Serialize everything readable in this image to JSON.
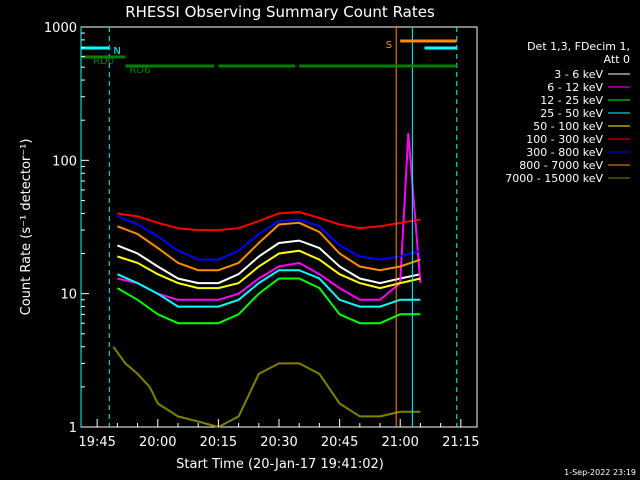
{
  "chart_data": {
    "type": "line",
    "title": "RHESSI Observing Summary Count Rates",
    "xlabel": "Start Time (20-Jan-17 19:41:02)",
    "ylabel": "Count Rate (s⁻¹ detector⁻¹)",
    "yscale": "log",
    "ylim": [
      1,
      1000
    ],
    "xlim": [
      "19:41",
      "21:19"
    ],
    "x_ticks": [
      "19:45",
      "20:00",
      "20:15",
      "20:30",
      "20:45",
      "21:00",
      "21:15"
    ],
    "y_ticks": [
      "1",
      "10",
      "100",
      "1000"
    ],
    "grid": false,
    "legend_position": "right",
    "legend_header": [
      "Det 1,3, FDecim 1,",
      "Att 0"
    ],
    "footer_date": "1-Sep-2022 23:19",
    "series": [
      {
        "name": "3 - 6 keV",
        "color": "#ffffff",
        "x": [
          "19:50",
          "19:55",
          "20:00",
          "20:05",
          "20:10",
          "20:15",
          "20:20",
          "20:25",
          "20:30",
          "20:35",
          "20:40",
          "20:45",
          "20:50",
          "20:55",
          "21:00",
          "21:05"
        ],
        "values": [
          23,
          20,
          16,
          13,
          12,
          12,
          14,
          19,
          24,
          25,
          22,
          16,
          13,
          12,
          13,
          14
        ]
      },
      {
        "name": "6 - 12 keV",
        "color": "#ff00ff",
        "x": [
          "19:50",
          "19:55",
          "20:00",
          "20:05",
          "20:10",
          "20:15",
          "20:20",
          "20:25",
          "20:30",
          "20:35",
          "20:40",
          "20:45",
          "20:50",
          "20:55",
          "21:00",
          "21:02",
          "21:05"
        ],
        "values": [
          13,
          12,
          10,
          9,
          9,
          9,
          10,
          13,
          16,
          17,
          14,
          11,
          9,
          9,
          12,
          160,
          12
        ]
      },
      {
        "name": "12 - 25 keV",
        "color": "#00ff00",
        "x": [
          "19:50",
          "19:55",
          "20:00",
          "20:05",
          "20:10",
          "20:15",
          "20:20",
          "20:25",
          "20:30",
          "20:35",
          "20:40",
          "20:45",
          "20:50",
          "20:55",
          "21:00",
          "21:05"
        ],
        "values": [
          11,
          9,
          7,
          6,
          6,
          6,
          7,
          10,
          13,
          13,
          11,
          7,
          6,
          6,
          7,
          7
        ]
      },
      {
        "name": "25 - 50 keV",
        "color": "#00ffff",
        "x": [
          "19:50",
          "19:55",
          "20:00",
          "20:05",
          "20:10",
          "20:15",
          "20:20",
          "20:25",
          "20:30",
          "20:35",
          "20:40",
          "20:45",
          "20:50",
          "20:55",
          "21:00",
          "21:05"
        ],
        "values": [
          14,
          12,
          10,
          8,
          8,
          8,
          9,
          12,
          15,
          15,
          13,
          9,
          8,
          8,
          9,
          9
        ]
      },
      {
        "name": "50 - 100 keV",
        "color": "#ffff00",
        "x": [
          "19:50",
          "19:55",
          "20:00",
          "20:05",
          "20:10",
          "20:15",
          "20:20",
          "20:25",
          "20:30",
          "20:35",
          "20:40",
          "20:45",
          "20:50",
          "20:55",
          "21:00",
          "21:05"
        ],
        "values": [
          19,
          17,
          14,
          12,
          11,
          11,
          12,
          16,
          20,
          21,
          18,
          14,
          12,
          11,
          12,
          13
        ]
      },
      {
        "name": "100 - 300 keV",
        "color": "#ff0000",
        "x": [
          "19:50",
          "19:55",
          "20:00",
          "20:05",
          "20:10",
          "20:15",
          "20:20",
          "20:25",
          "20:30",
          "20:35",
          "20:40",
          "20:45",
          "20:50",
          "20:55",
          "21:00",
          "21:05"
        ],
        "values": [
          40,
          38,
          34,
          31,
          30,
          30,
          31,
          35,
          40,
          41,
          37,
          33,
          31,
          32,
          34,
          36
        ]
      },
      {
        "name": "300 - 800 keV",
        "color": "#0000ff",
        "x": [
          "19:50",
          "19:55",
          "20:00",
          "20:05",
          "20:10",
          "20:15",
          "20:20",
          "20:25",
          "20:30",
          "20:35",
          "20:40",
          "20:45",
          "20:50",
          "20:55",
          "21:00",
          "21:05"
        ],
        "values": [
          38,
          33,
          27,
          21,
          18,
          18,
          21,
          28,
          35,
          36,
          32,
          23,
          19,
          18,
          19,
          21
        ]
      },
      {
        "name": "800 - 7000 keV",
        "color": "#ff8c00",
        "x": [
          "19:50",
          "19:55",
          "20:00",
          "20:05",
          "20:10",
          "20:15",
          "20:20",
          "20:25",
          "20:30",
          "20:35",
          "20:40",
          "20:45",
          "20:50",
          "20:55",
          "21:00",
          "21:05"
        ],
        "values": [
          32,
          28,
          22,
          17,
          15,
          15,
          17,
          24,
          33,
          34,
          29,
          20,
          16,
          15,
          16,
          18
        ]
      },
      {
        "name": "7000 - 15000 keV",
        "color": "#808000",
        "x": [
          "19:49",
          "19:52",
          "19:55",
          "19:58",
          "20:00",
          "20:05",
          "20:10",
          "20:15",
          "20:20",
          "20:25",
          "20:30",
          "20:35",
          "20:40",
          "20:45",
          "20:50",
          "20:55",
          "21:00",
          "21:05"
        ],
        "values": [
          4,
          3,
          2.5,
          2,
          1.5,
          1.2,
          1.1,
          1,
          1.2,
          2.5,
          3,
          3,
          2.5,
          1.5,
          1.2,
          1.2,
          1.3,
          1.3
        ]
      }
    ],
    "state_bars": [
      {
        "label": "N",
        "color": "#00ffff",
        "segments": [
          [
            "19:41",
            "19:48"
          ],
          [
            "21:06",
            "21:14"
          ]
        ]
      },
      {
        "label": "RD0",
        "color": "#008000",
        "segments": [
          [
            "19:41",
            "19:52"
          ]
        ]
      },
      {
        "label": "RD6",
        "color": "#008000",
        "segments": [
          [
            "19:52",
            "20:14"
          ],
          [
            "20:15",
            "20:34"
          ],
          [
            "20:35",
            "21:14"
          ]
        ]
      },
      {
        "label": "S",
        "color": "#ff8c00",
        "segments": [
          [
            "21:00",
            "21:14"
          ]
        ]
      }
    ],
    "vertical_lines": [
      {
        "x": "19:41",
        "color": "#00ffff",
        "style": "solid"
      },
      {
        "x": "19:48",
        "color": "#00ffff",
        "style": "dashed"
      },
      {
        "x": "20:59",
        "color": "#ff8c00",
        "style": "solid"
      },
      {
        "x": "21:03",
        "color": "#00ffff",
        "style": "solid"
      },
      {
        "x": "21:14",
        "color": "#00ffff",
        "style": "dashed"
      }
    ]
  }
}
